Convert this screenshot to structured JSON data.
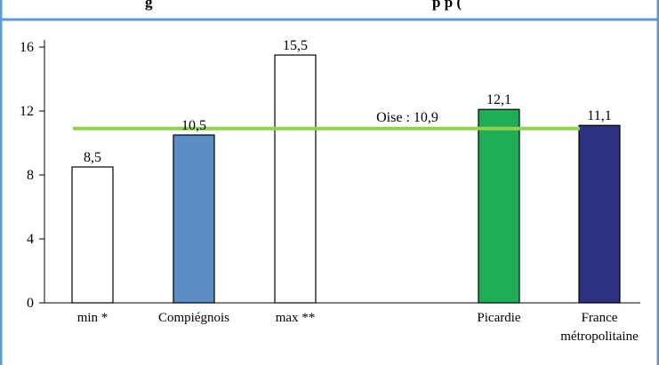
{
  "chart_data": {
    "type": "bar",
    "title": "g",
    "title_right": "p p (",
    "categories": [
      "min *",
      "Compiégnois",
      "max **",
      "Picardie",
      "France métropolitaine"
    ],
    "category_lines": [
      [
        "min *"
      ],
      [
        "Compiégnois"
      ],
      [
        "max **"
      ],
      [
        "Picardie"
      ],
      [
        "France",
        "métropolitaine"
      ]
    ],
    "values": [
      8.5,
      10.5,
      15.5,
      12.1,
      11.1
    ],
    "value_labels": [
      "8,5",
      "10,5",
      "15,5",
      "12,1",
      "11,1"
    ],
    "bar_colors": [
      "#ffffff",
      "#5b8ec7",
      "#ffffff",
      "#1fae55",
      "#2e3080"
    ],
    "ylim": [
      0,
      16
    ],
    "yticks": [
      0,
      4,
      8,
      12,
      16
    ],
    "reference_line": {
      "label": "Oise : 10,9",
      "value": 10.9,
      "color": "#92d050"
    },
    "border_color": "#5b9bd5",
    "grid": false
  }
}
